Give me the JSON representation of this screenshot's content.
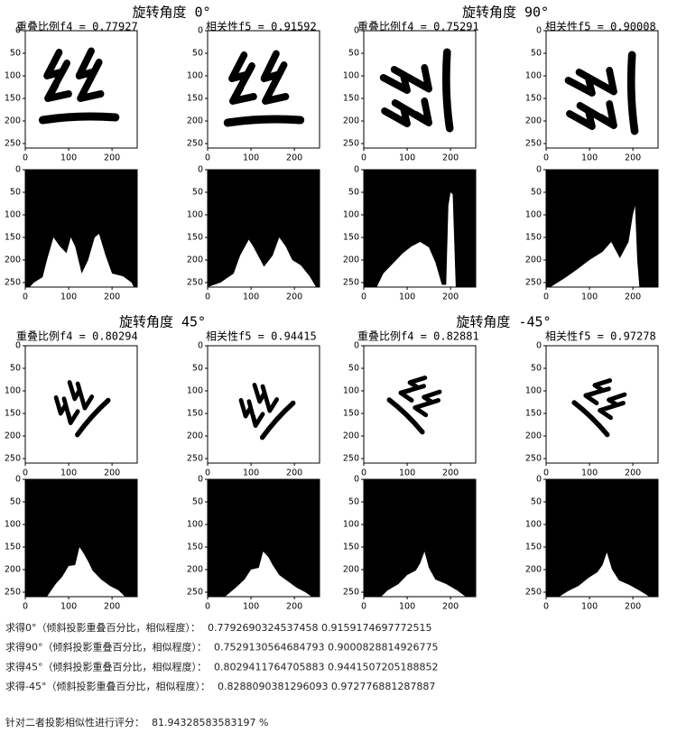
{
  "groups": [
    {
      "title": "旋转角度 0°",
      "overlap_label": "重叠比例f4 = 0.77927",
      "correlation_label": "相关性f5 = 0.91592"
    },
    {
      "title": "旋转角度 90°",
      "overlap_label": "重叠比例f4 = 0.75291",
      "correlation_label": "相关性f5 = 0.90008"
    },
    {
      "title": "旋转角度 45°",
      "overlap_label": "重叠比例f4 = 0.80294",
      "correlation_label": "相关性f5 = 0.94415"
    },
    {
      "title": "旋转角度 -45°",
      "overlap_label": "重叠比例f4 = 0.82881",
      "correlation_label": "相关性f5 = 0.97278"
    }
  ],
  "axes": {
    "yticks": [
      0,
      50,
      100,
      150,
      200,
      250
    ],
    "xticks": [
      0,
      100,
      200
    ]
  },
  "console": {
    "lines": [
      {
        "label": "求得0°（倾斜投影重叠百分比，相似程度）：",
        "values": "0.7792690324537458 0.9159174697772515"
      },
      {
        "label": "求得90°（倾斜投影重叠百分比，相似程度）：",
        "values": "0.7529130564684793 0.9000828814926775"
      },
      {
        "label": "求得45°（倾斜投影重叠百分比，相似程度）：",
        "values": "0.8029411764705883 0.9441507205188852"
      },
      {
        "label": "求得-45°（倾斜投影重叠百分比，相似程度）：",
        "values": "0.8288090381296093 0.972776881287887"
      }
    ],
    "score": {
      "label": "针对二者投影相似性进行评分：",
      "value": "81.94328583583197 %"
    }
  }
}
